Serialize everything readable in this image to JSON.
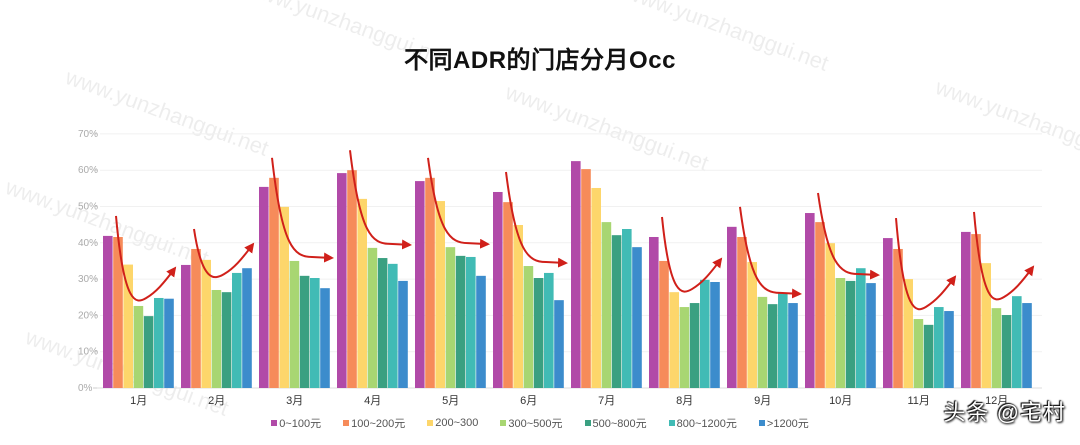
{
  "title": "不同ADR的门店分月Occ",
  "signature": "头条 @宅村",
  "watermark_text": "www.yunzhanggui.net",
  "chart_data": {
    "type": "bar",
    "title": "不同ADR的门店分月Occ",
    "xlabel": "",
    "ylabel": "",
    "ylim": [
      0,
      70
    ],
    "yticks": [
      "0%",
      "10%",
      "20%",
      "30%",
      "40%",
      "50%",
      "60%",
      "70%"
    ],
    "grid": true,
    "legend_position": "bottom",
    "categories": [
      "1月",
      "2月",
      "3月",
      "4月",
      "5月",
      "6月",
      "7月",
      "8月",
      "9月",
      "10月",
      "11月",
      "12月"
    ],
    "series": [
      {
        "name": "0~100元",
        "color": "#b14aa8",
        "values": [
          41.9,
          33.9,
          55.4,
          59.2,
          57.0,
          54.0,
          62.5,
          41.6,
          44.4,
          48.2,
          41.3,
          43.0
        ]
      },
      {
        "name": "100~200元",
        "color": "#f68b5a",
        "values": [
          41.6,
          38.3,
          57.9,
          60.0,
          57.9,
          51.2,
          60.3,
          35.0,
          41.6,
          45.7,
          38.3,
          42.4
        ]
      },
      {
        "name": "200~300",
        "color": "#fdd66b",
        "values": [
          34.0,
          35.3,
          49.9,
          52.1,
          51.5,
          44.9,
          55.1,
          26.4,
          34.7,
          39.9,
          30.0,
          34.4
        ]
      },
      {
        "name": "300~500元",
        "color": "#a8d672",
        "values": [
          22.6,
          27.0,
          35.0,
          38.6,
          38.8,
          33.6,
          45.7,
          22.3,
          25.1,
          30.3,
          19.0,
          22.0
        ]
      },
      {
        "name": "500~800元",
        "color": "#3aa081",
        "values": [
          19.8,
          26.4,
          30.9,
          35.8,
          36.4,
          30.3,
          42.1,
          23.4,
          23.1,
          29.5,
          17.4,
          20.1
        ]
      },
      {
        "name": "800~1200元",
        "color": "#41bbb5",
        "values": [
          24.8,
          31.7,
          30.3,
          34.2,
          36.1,
          31.7,
          43.8,
          29.8,
          26.2,
          33.0,
          22.3,
          25.3
        ]
      },
      {
        "name": ">1200元",
        "color": "#3c8ccc",
        "values": [
          24.6,
          33.0,
          27.5,
          29.5,
          30.9,
          24.2,
          38.8,
          29.2,
          23.4,
          28.9,
          21.2,
          23.4
        ]
      }
    ],
    "annotations": [
      {
        "type": "u-arrow",
        "month": "1月"
      },
      {
        "type": "u-arrow",
        "month": "2月"
      },
      {
        "type": "down-right-arrow",
        "month": "3月"
      },
      {
        "type": "down-right-arrow",
        "month": "4月"
      },
      {
        "type": "down-right-arrow",
        "month": "5月"
      },
      {
        "type": "down-right-arrow",
        "month": "6月"
      },
      {
        "type": "u-arrow",
        "month": "8月"
      },
      {
        "type": "down-right-arrow",
        "month": "9月"
      },
      {
        "type": "down-right-arrow",
        "month": "10月"
      },
      {
        "type": "u-arrow",
        "month": "11月"
      },
      {
        "type": "u-arrow",
        "month": "12月"
      }
    ],
    "annotation_color": "#d0201a"
  }
}
